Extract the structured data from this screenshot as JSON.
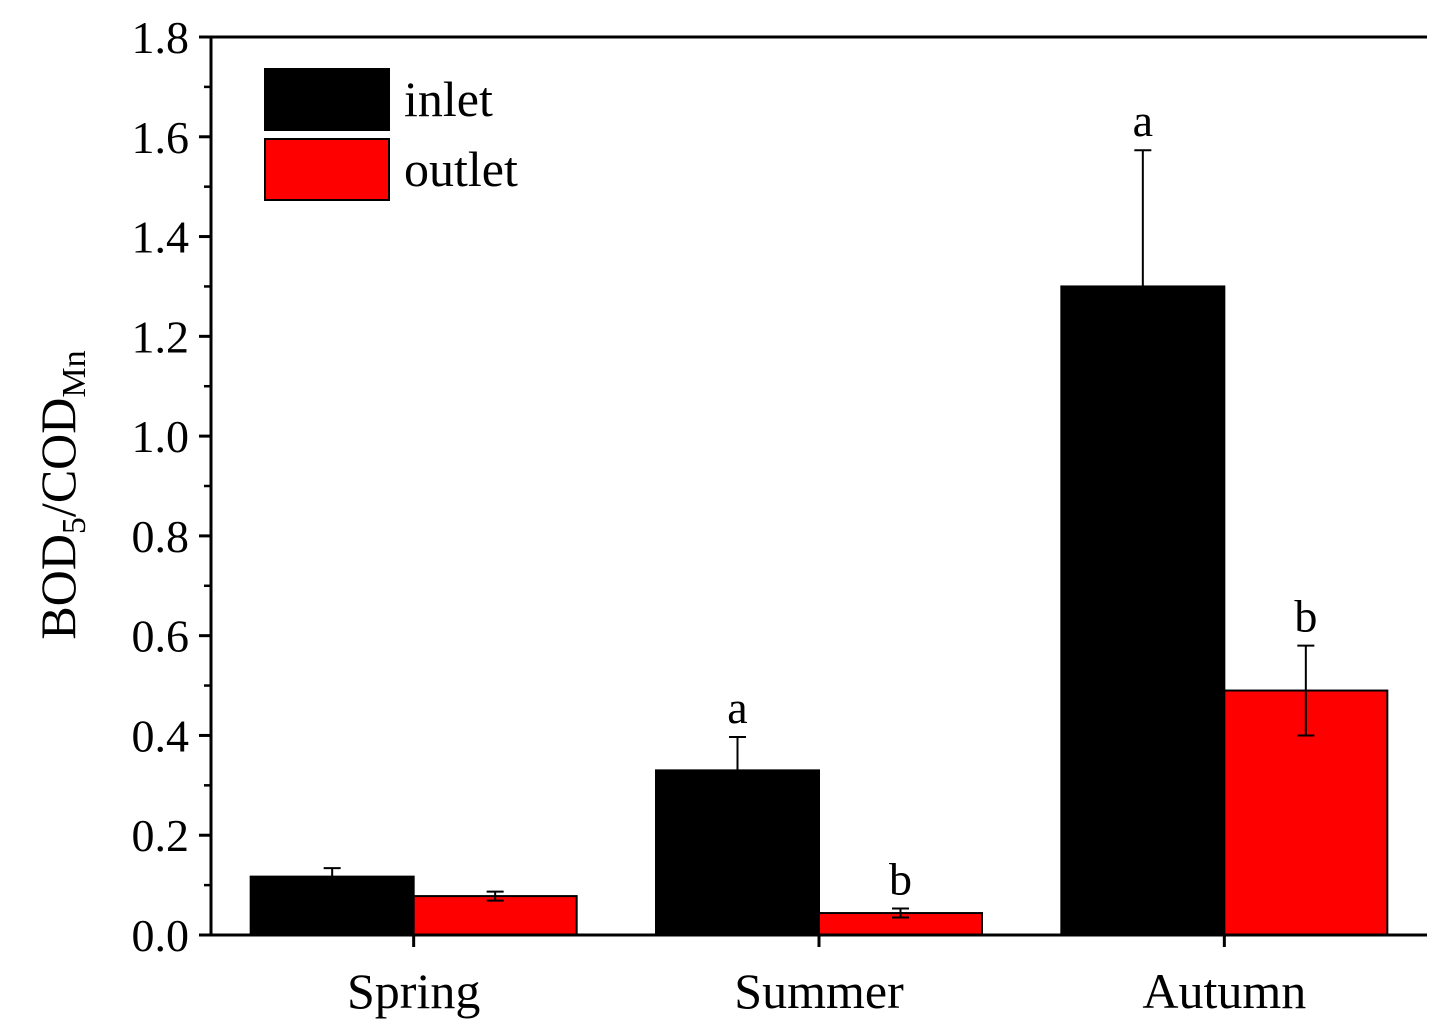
{
  "chart_data": {
    "type": "bar",
    "categories": [
      "Spring",
      "Summer",
      "Autumn"
    ],
    "series": [
      {
        "name": "inlet",
        "color": "#000000",
        "values": [
          0.117,
          0.33,
          1.3
        ],
        "errors": [
          0.017,
          0.067,
          0.273
        ],
        "labels": [
          "",
          "a",
          "a"
        ]
      },
      {
        "name": "outlet",
        "color": "#ff0000",
        "values": [
          0.078,
          0.044,
          0.49
        ],
        "errors": [
          0.009,
          0.009,
          0.09
        ],
        "labels": [
          "",
          "b",
          "b"
        ]
      }
    ],
    "ylabel": {
      "main": "BOD",
      "sub1": "5",
      "mid": "/COD",
      "sub2": "Mn"
    },
    "xlabel": "",
    "ylim": [
      0,
      1.8
    ],
    "yticks": [
      "0.0",
      "0.2",
      "0.4",
      "0.6",
      "0.8",
      "1.0",
      "1.2",
      "1.4",
      "1.6",
      "1.8"
    ],
    "legend_position": "top-left",
    "grid": false
  }
}
